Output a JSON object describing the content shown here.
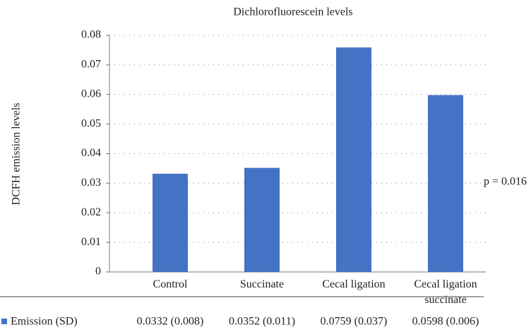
{
  "chart_data": {
    "type": "bar",
    "title": "Dichlorofluorescein levels",
    "ylabel": "DCFH emission levels",
    "categories": [
      "Control",
      "Succinate",
      "Cecal ligation",
      "Cecal ligation succinate"
    ],
    "series": [
      {
        "name": "Emission (SD)",
        "color": "#4472c4",
        "values": [
          0.0332,
          0.0352,
          0.0759,
          0.0598
        ],
        "value_labels": [
          "0.0332 (0.008)",
          "0.0352 (0.011)",
          "0.0759 (0.037)",
          "0.0598 (0.006)"
        ]
      }
    ],
    "ylim": [
      0,
      0.08
    ],
    "yticks": [
      0,
      0.01,
      0.02,
      0.03,
      0.04,
      0.05,
      0.06,
      0.07,
      0.08
    ],
    "grid": true,
    "annotation": "p = 0.016"
  }
}
